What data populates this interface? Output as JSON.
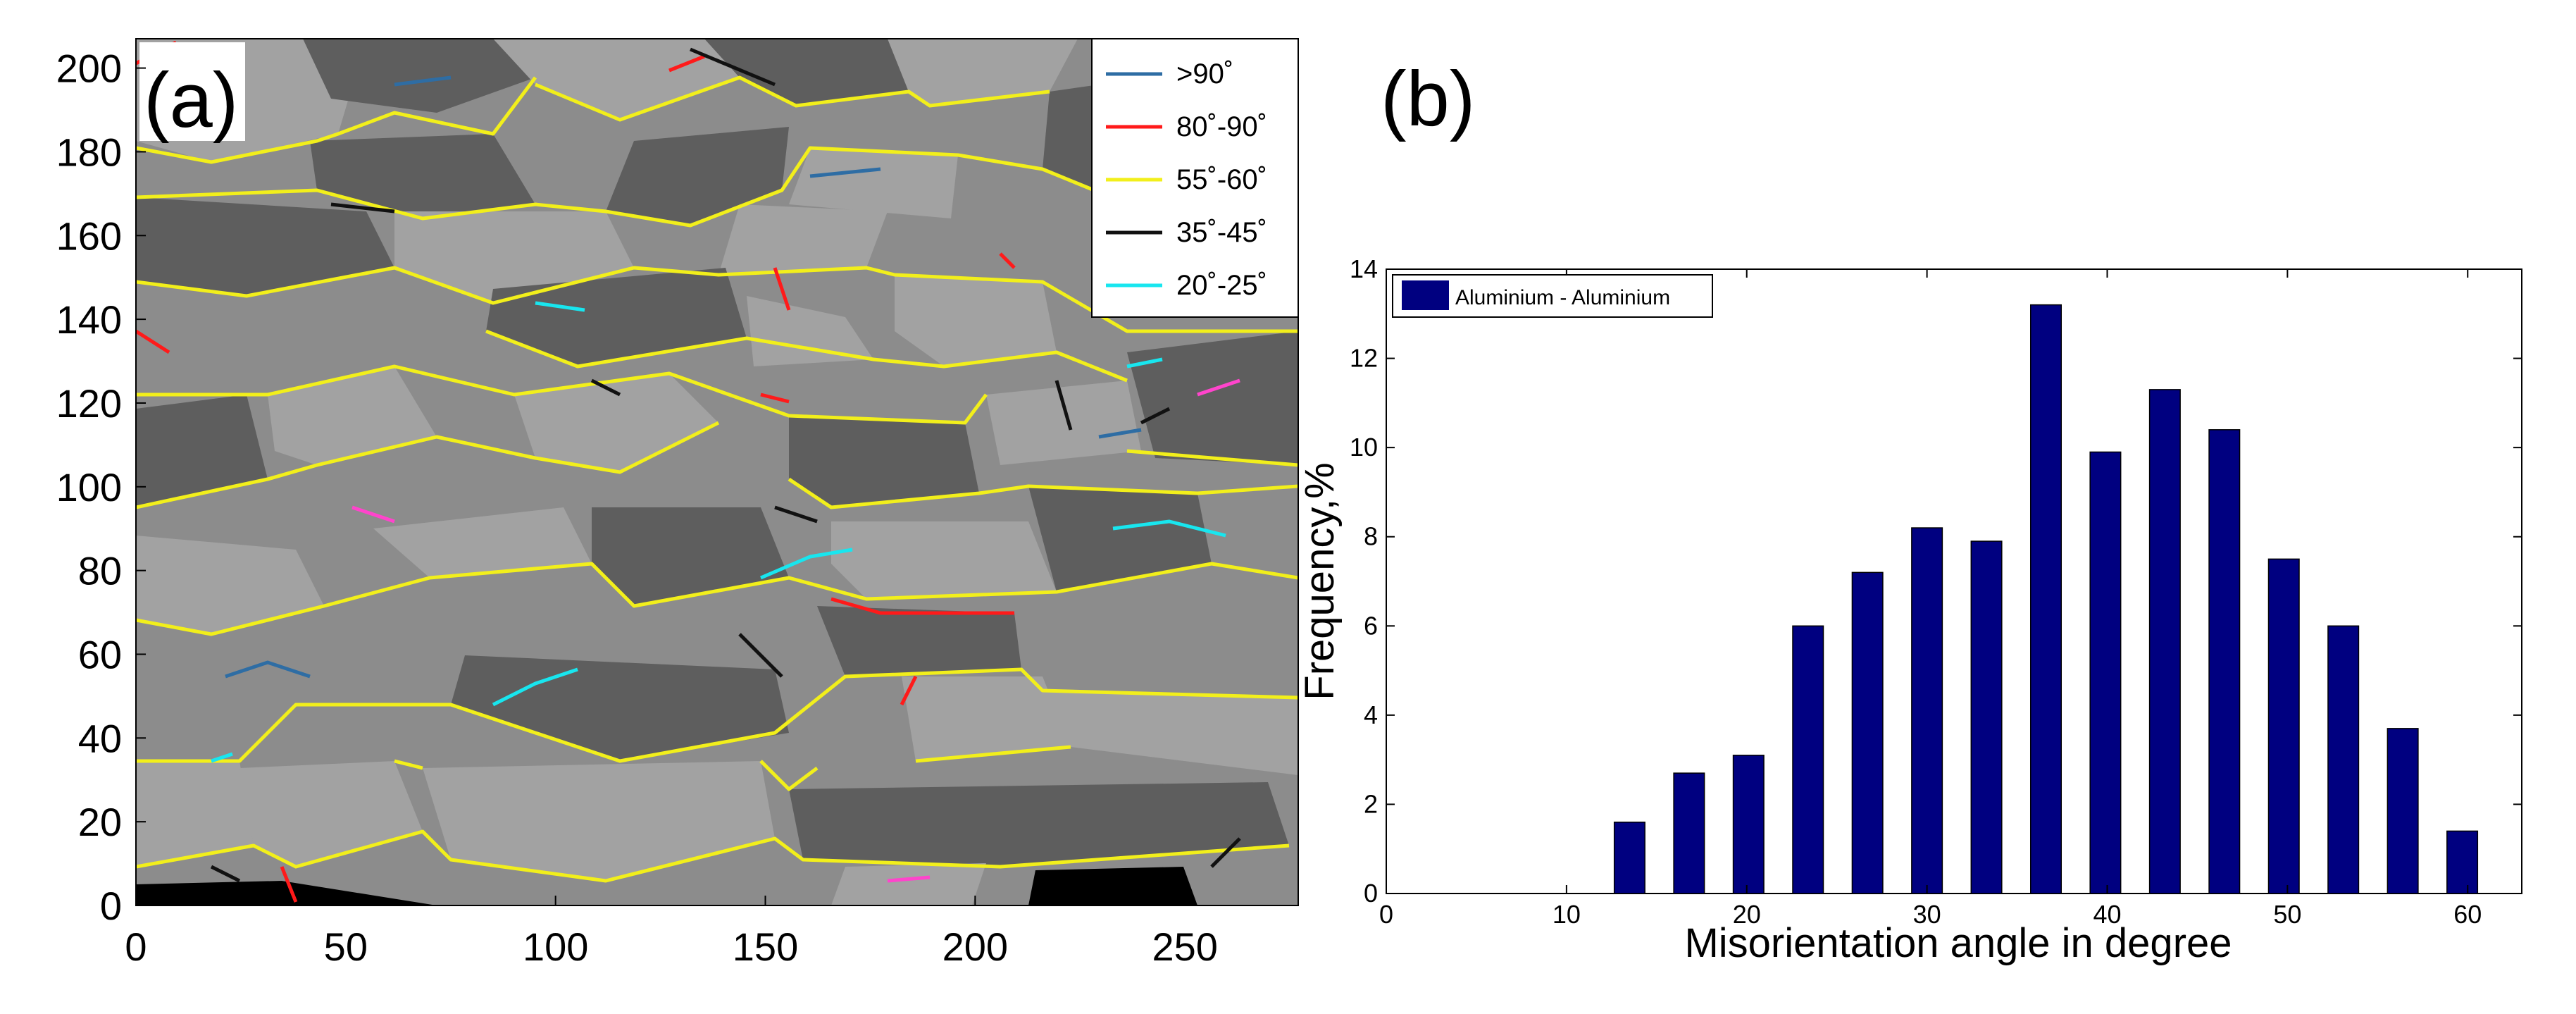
{
  "chart_data": [
    {
      "type": "map",
      "panel_label": "(a)",
      "x_ticks": [
        0,
        50,
        100,
        150,
        200,
        250
      ],
      "y_ticks": [
        0,
        20,
        40,
        60,
        80,
        100,
        120,
        140,
        160,
        180,
        200
      ],
      "xlim": [
        0,
        277
      ],
      "ylim": [
        0,
        207
      ],
      "legend": {
        "placement": "top-right",
        "entries": [
          {
            "label": ">90˚",
            "color": "#2e6da4"
          },
          {
            "label": "80˚-90˚",
            "color": "#ff1a1a"
          },
          {
            "label": "55˚-60˚",
            "color": "#f2ef1b"
          },
          {
            "label": "35˚-45˚",
            "color": "#111111"
          },
          {
            "label": "20˚-25˚",
            "color": "#18e6ef"
          }
        ]
      },
      "colors": {
        "grain_light": "#a0a0a0",
        "grain_mid": "#8c8c8c",
        "grain_dark": "#5e5e5e",
        "void": "#000000"
      }
    },
    {
      "type": "bar",
      "panel_label": "(b)",
      "title": "",
      "xlabel": "Misorientation angle in degree",
      "ylabel": "Frequency,%",
      "xlim": [
        0,
        63
      ],
      "ylim": [
        0,
        14
      ],
      "x_ticks": [
        0,
        10,
        20,
        30,
        40,
        50,
        60
      ],
      "y_ticks": [
        0,
        2,
        4,
        6,
        8,
        10,
        12,
        14
      ],
      "legend": {
        "placement": "top-left",
        "label": "Aluminium - Aluminium"
      },
      "series": [
        {
          "name": "Aluminium - Aluminium",
          "color": "#000080",
          "x": [
            13.5,
            16.8,
            20.1,
            23.4,
            26.7,
            30.0,
            33.3,
            36.6,
            39.9,
            43.2,
            46.5,
            49.8,
            53.1,
            56.4,
            59.7
          ],
          "values": [
            1.6,
            2.7,
            3.1,
            6.0,
            7.2,
            8.2,
            7.9,
            13.2,
            9.9,
            11.3,
            10.4,
            7.5,
            6.0,
            3.7,
            1.4
          ]
        }
      ]
    }
  ]
}
